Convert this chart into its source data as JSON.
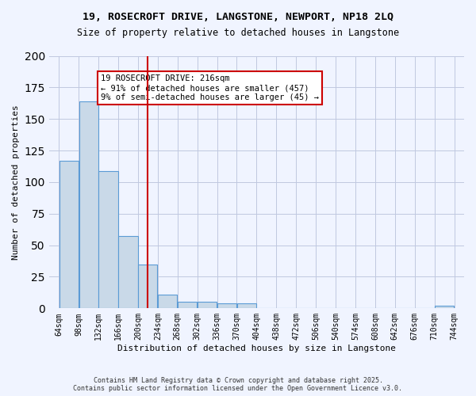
{
  "title_line1": "19, ROSECROFT DRIVE, LANGSTONE, NEWPORT, NP18 2LQ",
  "title_line2": "Size of property relative to detached houses in Langstone",
  "xlabel": "Distribution of detached houses by size in Langstone",
  "ylabel": "Number of detached properties",
  "bar_color": "#c9d9e8",
  "bar_edge_color": "#5b9bd5",
  "background_color": "#f0f4ff",
  "grid_color": "#c0c8e0",
  "vline_color": "#cc0000",
  "vline_x": 216,
  "annotation_text": "19 ROSECROFT DRIVE: 216sqm\n← 91% of detached houses are smaller (457)\n9% of semi-detached houses are larger (45) →",
  "annotation_box_color": "#ffffff",
  "annotation_border_color": "#cc0000",
  "bins": [
    64,
    98,
    132,
    166,
    200,
    234,
    268,
    302,
    336,
    370,
    404,
    438,
    472,
    506,
    540,
    574,
    608,
    642,
    676,
    710,
    744
  ],
  "counts": [
    117,
    164,
    109,
    57,
    35,
    11,
    5,
    5,
    4,
    4,
    0,
    0,
    0,
    0,
    0,
    0,
    0,
    0,
    0,
    2
  ],
  "tick_labels": [
    "64sqm",
    "98sqm",
    "132sqm",
    "166sqm",
    "200sqm",
    "234sqm",
    "268sqm",
    "302sqm",
    "336sqm",
    "370sqm",
    "404sqm",
    "438sqm",
    "472sqm",
    "506sqm",
    "540sqm",
    "574sqm",
    "608sqm",
    "642sqm",
    "676sqm",
    "710sqm",
    "744sqm"
  ],
  "ylim": [
    0,
    200
  ],
  "copyright_text": "Contains HM Land Registry data © Crown copyright and database right 2025.\nContains public sector information licensed under the Open Government Licence v3.0."
}
